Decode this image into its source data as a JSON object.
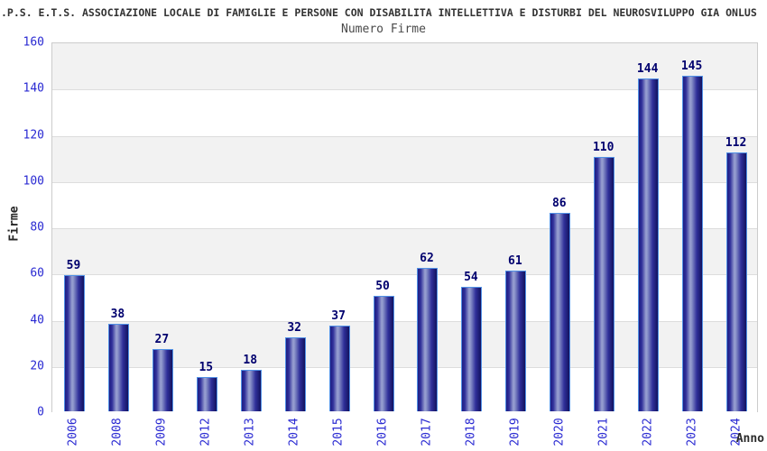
{
  "title": ".P.S. E.T.S. ASSOCIAZIONE LOCALE DI FAMIGLIE E PERSONE CON DISABILITA INTELLETTIVA E DISTURBI DEL NEUROSVILUPPO GIA ONLUS",
  "subtitle": "Numero Firme",
  "chart_data": {
    "type": "bar",
    "title": "Numero Firme",
    "xlabel": "Anno",
    "ylabel": "Firme",
    "categories": [
      "2006",
      "2008",
      "2009",
      "2012",
      "2013",
      "2014",
      "2015",
      "2016",
      "2017",
      "2018",
      "2019",
      "2020",
      "2021",
      "2022",
      "2023",
      "2024"
    ],
    "values": [
      59,
      38,
      27,
      15,
      18,
      32,
      37,
      50,
      62,
      54,
      61,
      86,
      110,
      144,
      145,
      112
    ],
    "ylim": [
      0,
      160
    ],
    "yticks": [
      0,
      20,
      40,
      60,
      80,
      100,
      120,
      140,
      160
    ],
    "grid": "horizontal-bands-alternating",
    "legend": "none",
    "colors": {
      "bar_fill_dark": "#1e1e82",
      "bar_fill_highlight": "#9aa2d2",
      "bar_border": "#5191e6",
      "value_label": "#00006e",
      "tick_label": "#2a2ad2",
      "band_gray": "#f2f2f2",
      "band_white": "#ffffff",
      "gridline": "#dddddd",
      "plot_border": "#cccccc",
      "title_text": "#333333",
      "subtitle_text": "#4a4a4a",
      "axis_title_text": "#262626"
    }
  }
}
